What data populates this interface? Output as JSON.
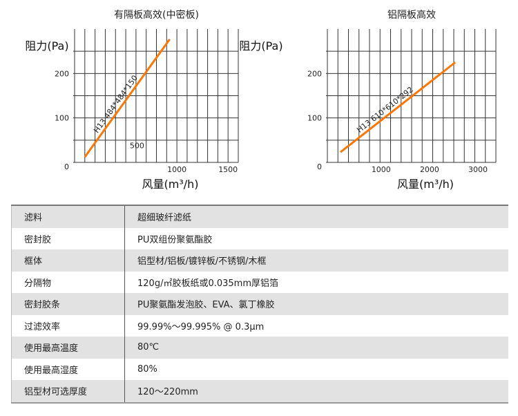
{
  "chart_data": [
    {
      "type": "line",
      "title": "有隔板高效(中密板)",
      "ylabel": "阻力(Pa)",
      "xlabel": "风量(m³/h)",
      "xlim": [
        0,
        1600
      ],
      "ylim": [
        0,
        300
      ],
      "xticks": [
        "1000",
        "1500"
      ],
      "xtick_values": [
        1000,
        1500
      ],
      "yticks": [
        "0",
        "100",
        "200"
      ],
      "ytick_values": [
        0,
        100,
        200
      ],
      "grid": true,
      "series": [
        {
          "label": "H13  484*484*150",
          "x": [
            100,
            930
          ],
          "y": [
            12,
            277
          ],
          "color": "#ff7700"
        }
      ],
      "annotations": [
        {
          "text": "500",
          "x": 610,
          "y": 32
        }
      ]
    },
    {
      "type": "line",
      "title": "铝隔板高效",
      "ylabel": "阻力(Pa)",
      "xlabel": "风量(m³/h)",
      "xlim": [
        -110,
        3370
      ],
      "ylim": [
        0,
        300
      ],
      "xticks": [
        "1000",
        "2000",
        "3000"
      ],
      "xtick_values": [
        1000,
        2000,
        3000
      ],
      "yticks": [
        "0",
        "100",
        "200"
      ],
      "ytick_values": [
        0,
        100,
        200
      ],
      "grid": true,
      "series": [
        {
          "label": "H13  610*610*292",
          "x": [
            160,
            2530
          ],
          "y": [
            23,
            225
          ],
          "color": "#ff7700"
        }
      ],
      "annotations": []
    }
  ],
  "table": [
    {
      "k": "滤料",
      "v": "超细玻纤滤纸"
    },
    {
      "k": "密封胶",
      "v": "PU双组份聚氨酯胶"
    },
    {
      "k": "框体",
      "v": "铝型材/铝板/镀锌板/不锈钢/木框"
    },
    {
      "k": "分隔物",
      "v": "120g/㎡胶板纸或0.035mm厚铝箔"
    },
    {
      "k": "密封胶条",
      "v": "PU聚氨酯发泡胶、EVA、氯丁橡胶"
    },
    {
      "k": "过滤效率",
      "v": "99.99%～99.995% @ 0.3μm"
    },
    {
      "k": "使用最高温度",
      "v": "80℃"
    },
    {
      "k": "使用最高湿度",
      "v": "80%"
    },
    {
      "k": "铝型材可选厚度",
      "v": "120～220mm"
    }
  ]
}
